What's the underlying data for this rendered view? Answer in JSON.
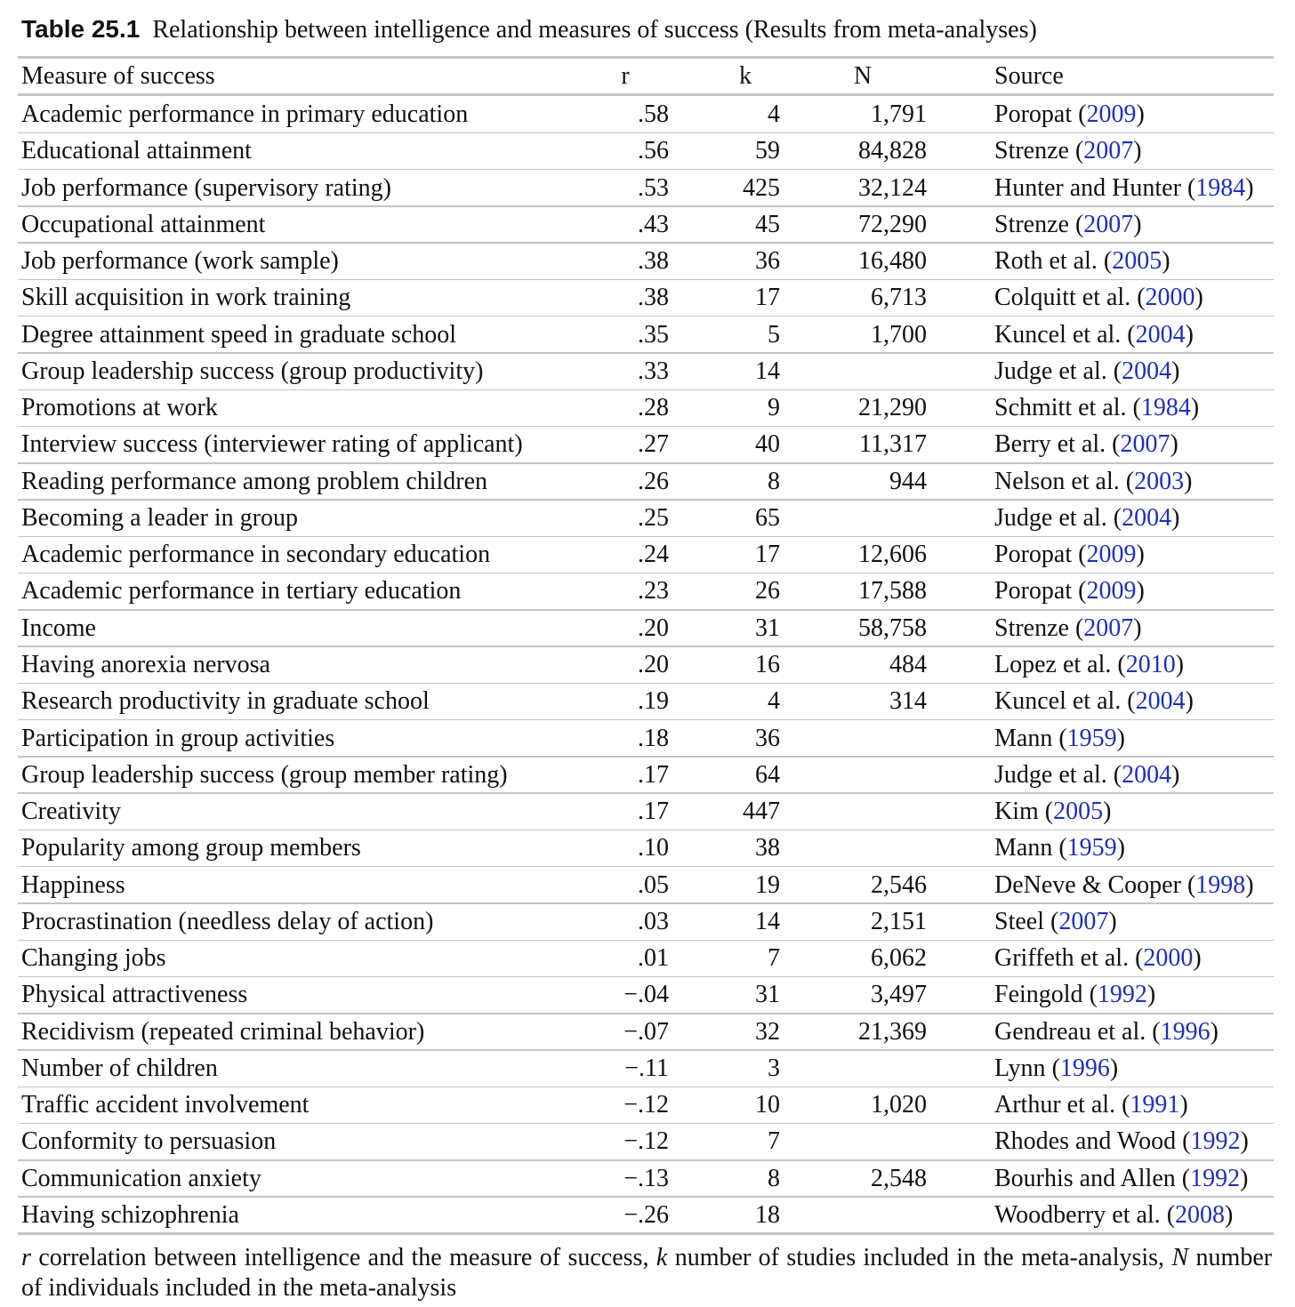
{
  "table": {
    "label": "Table 25.1",
    "title": "Relationship between intelligence and measures of success (Results from meta-analyses)",
    "headers": {
      "measure": "Measure of success",
      "r": "r",
      "k": "k",
      "N": "N",
      "source": "Source"
    },
    "rows": [
      {
        "measure": "Academic performance in primary education",
        "r": ".58",
        "k": "4",
        "N": "1,791",
        "author": "Poropat",
        "year": "2009"
      },
      {
        "measure": "Educational attainment",
        "r": ".56",
        "k": "59",
        "N": "84,828",
        "author": "Strenze",
        "year": "2007"
      },
      {
        "measure": "Job performance (supervisory rating)",
        "r": ".53",
        "k": "425",
        "N": "32,124",
        "author": "Hunter and Hunter",
        "year": "1984"
      },
      {
        "measure": "Occupational attainment",
        "r": ".43",
        "k": "45",
        "N": "72,290",
        "author": "Strenze",
        "year": "2007"
      },
      {
        "measure": "Job performance (work sample)",
        "r": ".38",
        "k": "36",
        "N": "16,480",
        "author": "Roth et al.",
        "year": "2005"
      },
      {
        "measure": "Skill acquisition in work training",
        "r": ".38",
        "k": "17",
        "N": "6,713",
        "author": "Colquitt et al.",
        "year": "2000"
      },
      {
        "measure": "Degree attainment speed in graduate school",
        "r": ".35",
        "k": "5",
        "N": "1,700",
        "author": "Kuncel et al.",
        "year": "2004"
      },
      {
        "measure": "Group leadership success (group productivity)",
        "r": ".33",
        "k": "14",
        "author": "Judge et al.",
        "year": "2004"
      },
      {
        "measure": "Promotions at work",
        "r": ".28",
        "k": "9",
        "N": "21,290",
        "author": "Schmitt et al.",
        "year": "1984"
      },
      {
        "measure": "Interview success (interviewer rating of applicant)",
        "r": ".27",
        "k": "40",
        "N": "11,317",
        "author": "Berry et al.",
        "year": "2007"
      },
      {
        "measure": "Reading performance among problem children",
        "r": ".26",
        "k": "8",
        "N": "944",
        "author": "Nelson et al.",
        "year": "2003"
      },
      {
        "measure": "Becoming a leader in group",
        "r": ".25",
        "k": "65",
        "author": "Judge et al.",
        "year": "2004"
      },
      {
        "measure": "Academic performance in secondary education",
        "r": ".24",
        "k": "17",
        "N": "12,606",
        "author": "Poropat",
        "year": "2009"
      },
      {
        "measure": "Academic performance in tertiary education",
        "r": ".23",
        "k": "26",
        "N": "17,588",
        "author": "Poropat",
        "year": "2009"
      },
      {
        "measure": "Income",
        "r": ".20",
        "k": "31",
        "N": "58,758",
        "author": "Strenze",
        "year": "2007"
      },
      {
        "measure": "Having anorexia nervosa",
        "r": ".20",
        "k": "16",
        "N": "484",
        "author": "Lopez et al.",
        "year": "2010"
      },
      {
        "measure": "Research productivity in graduate school",
        "r": ".19",
        "k": "4",
        "N": "314",
        "author": "Kuncel et al.",
        "year": "2004"
      },
      {
        "measure": "Participation in group activities",
        "r": ".18",
        "k": "36",
        "author": "Mann",
        "year": "1959"
      },
      {
        "measure": "Group leadership success (group member rating)",
        "r": ".17",
        "k": "64",
        "author": "Judge et al.",
        "year": "2004"
      },
      {
        "measure": "Creativity",
        "r": ".17",
        "k": "447",
        "author": "Kim",
        "year": "2005"
      },
      {
        "measure": "Popularity among group members",
        "r": ".10",
        "k": "38",
        "author": "Mann",
        "year": "1959"
      },
      {
        "measure": "Happiness",
        "r": ".05",
        "k": "19",
        "N": "2,546",
        "author": "DeNeve & Cooper",
        "year": "1998"
      },
      {
        "measure": "Procrastination (needless delay of action)",
        "r": ".03",
        "k": "14",
        "N": "2,151",
        "author": "Steel",
        "year": "2007"
      },
      {
        "measure": "Changing jobs",
        "r": ".01",
        "k": "7",
        "N": "6,062",
        "author": "Griffeth et al.",
        "year": "2000"
      },
      {
        "measure": "Physical attractiveness",
        "r": "−.04",
        "k": "31",
        "N": "3,497",
        "author": "Feingold",
        "year": "1992"
      },
      {
        "measure": "Recidivism (repeated criminal behavior)",
        "r": "−.07",
        "k": "32",
        "N": "21,369",
        "author": "Gendreau et al.",
        "year": "1996"
      },
      {
        "measure": "Number of children",
        "r": "−.11",
        "k": "3",
        "author": "Lynn",
        "year": "1996"
      },
      {
        "measure": "Traffic accident involvement",
        "r": "−.12",
        "k": "10",
        "N": "1,020",
        "author": "Arthur et al.",
        "year": "1991"
      },
      {
        "measure": "Conformity to persuasion",
        "r": "−.12",
        "k": "7",
        "author": "Rhodes and Wood",
        "year": "1992"
      },
      {
        "measure": "Communication anxiety",
        "r": "−.13",
        "k": "8",
        "N": "2,548",
        "author": "Bourhis and Allen",
        "year": "1992"
      },
      {
        "measure": "Having schizophrenia",
        "r": "−.26",
        "k": "18",
        "author": "Woodberry et al.",
        "year": "2008"
      }
    ],
    "footnote": [
      {
        "symbol": "r",
        "text": "correlation between intelligence and the measure of success,"
      },
      {
        "symbol": "k",
        "text": "number of studies included in the meta-analysis,"
      },
      {
        "symbol": "N",
        "text": "number of individuals included in the meta-analysis"
      }
    ]
  }
}
